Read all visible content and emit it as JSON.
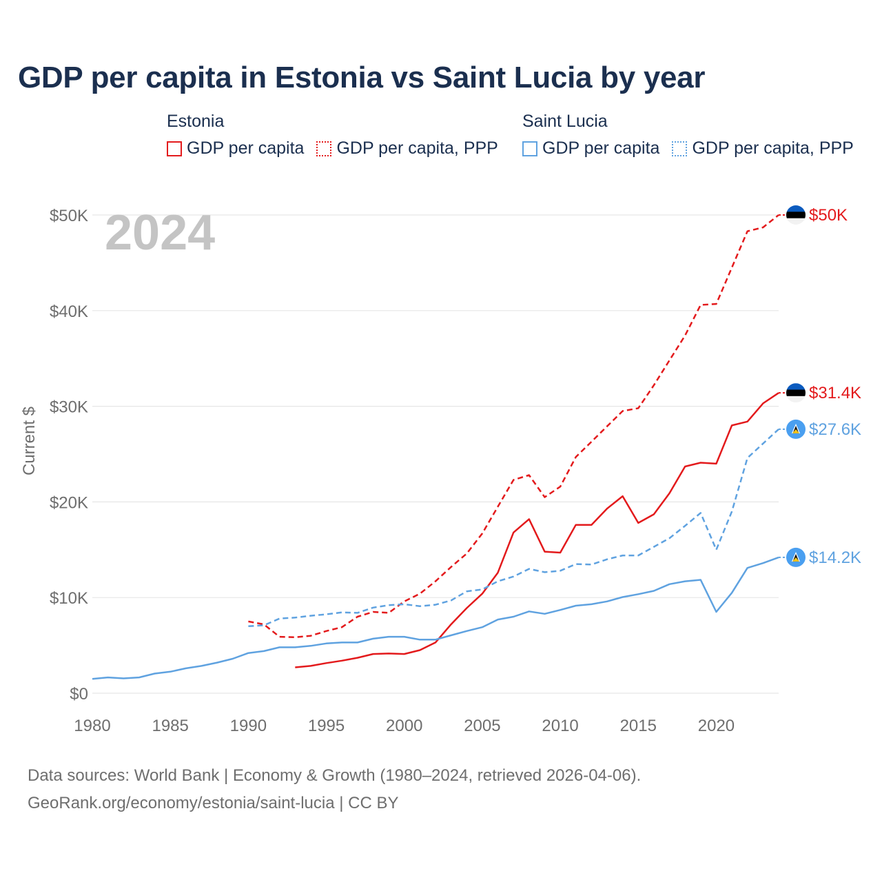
{
  "title": "GDP per capita in Estonia vs Saint Lucia by year",
  "legend": {
    "estonia": {
      "group": "Estonia",
      "items": [
        "GDP per capita",
        "GDP per capita, PPP"
      ]
    },
    "saint_lucia": {
      "group": "Saint Lucia",
      "items": [
        "GDP per capita",
        "GDP per capita, PPP"
      ]
    }
  },
  "footer": {
    "line1": "Data sources: World Bank | Economy & Growth (1980–2024, retrieved 2026-04-06).",
    "line2": "GeoRank.org/economy/estonia/saint-lucia | CC BY"
  },
  "colors": {
    "estonia": "#e31a1c",
    "saint_lucia": "#5fa2e0",
    "year_watermark": "#c4c4c4",
    "axis_text": "#6e6e6e",
    "title": "#1b2f4f"
  },
  "chart_data": {
    "type": "line",
    "title": "GDP per capita in Estonia vs Saint Lucia by year",
    "year_label": "2024",
    "ylabel": "Current $",
    "xlabel": "",
    "xlim": [
      1980,
      2024
    ],
    "ylim": [
      0,
      50000
    ],
    "x_ticks": [
      1980,
      1985,
      1990,
      1995,
      2000,
      2005,
      2010,
      2015,
      2020
    ],
    "y_ticks": [
      {
        "value": 0,
        "label": "$0"
      },
      {
        "value": 10000,
        "label": "$10K"
      },
      {
        "value": 20000,
        "label": "$20K"
      },
      {
        "value": 30000,
        "label": "$30K"
      },
      {
        "value": 40000,
        "label": "$40K"
      },
      {
        "value": 50000,
        "label": "$50K"
      }
    ],
    "grid": true,
    "series": [
      {
        "name": "Estonia GDP per capita",
        "country": "Estonia",
        "style": "solid",
        "color": "#e31a1c",
        "end_label": "$31.4K",
        "flag": "estonia",
        "x": [
          1993,
          1994,
          1995,
          1996,
          1997,
          1998,
          1999,
          2000,
          2001,
          2002,
          2003,
          2004,
          2005,
          2006,
          2007,
          2008,
          2009,
          2010,
          2011,
          2012,
          2013,
          2014,
          2015,
          2016,
          2017,
          2018,
          2019,
          2020,
          2021,
          2022,
          2023,
          2024
        ],
        "values": [
          2700,
          2850,
          3150,
          3400,
          3700,
          4100,
          4150,
          4100,
          4500,
          5300,
          7200,
          8900,
          10400,
          12600,
          16800,
          18200,
          14800,
          14700,
          17600,
          17600,
          19300,
          20600,
          17800,
          18700,
          20900,
          23700,
          24100,
          24000,
          28000,
          28400,
          30300,
          31400
        ]
      },
      {
        "name": "Estonia GDP per capita, PPP",
        "country": "Estonia",
        "style": "dashed",
        "color": "#e31a1c",
        "end_label": "$50K",
        "flag": "estonia",
        "x": [
          1990,
          1991,
          1992,
          1993,
          1994,
          1995,
          1996,
          1997,
          1998,
          1999,
          2000,
          2001,
          2002,
          2003,
          2004,
          2005,
          2006,
          2007,
          2008,
          2009,
          2010,
          2011,
          2012,
          2013,
          2014,
          2015,
          2016,
          2017,
          2018,
          2019,
          2020,
          2021,
          2022,
          2023,
          2024
        ],
        "values": [
          7500,
          7200,
          5900,
          5850,
          6000,
          6500,
          6900,
          8000,
          8500,
          8400,
          9600,
          10400,
          11700,
          13200,
          14600,
          16700,
          19500,
          22300,
          22800,
          20500,
          21600,
          24700,
          26300,
          27900,
          29500,
          29800,
          32200,
          34800,
          37400,
          40600,
          40700,
          44500,
          48300,
          48700,
          50000
        ]
      },
      {
        "name": "Saint Lucia GDP per capita",
        "country": "Saint Lucia",
        "style": "solid",
        "color": "#5fa2e0",
        "end_label": "$14.2K",
        "flag": "saint-lucia",
        "x": [
          1980,
          1981,
          1982,
          1983,
          1984,
          1985,
          1986,
          1987,
          1988,
          1989,
          1990,
          1991,
          1992,
          1993,
          1994,
          1995,
          1996,
          1997,
          1998,
          1999,
          2000,
          2001,
          2002,
          2003,
          2004,
          2005,
          2006,
          2007,
          2008,
          2009,
          2010,
          2011,
          2012,
          2013,
          2014,
          2015,
          2016,
          2017,
          2018,
          2019,
          2020,
          2021,
          2022,
          2023,
          2024
        ],
        "values": [
          1500,
          1650,
          1550,
          1650,
          2050,
          2250,
          2600,
          2850,
          3200,
          3600,
          4200,
          4400,
          4800,
          4800,
          4950,
          5200,
          5300,
          5300,
          5700,
          5900,
          5900,
          5600,
          5600,
          6050,
          6500,
          6900,
          7700,
          8000,
          8550,
          8300,
          8700,
          9150,
          9300,
          9600,
          10050,
          10350,
          10700,
          11400,
          11700,
          11850,
          8500,
          10500,
          13100,
          13600,
          14200
        ]
      },
      {
        "name": "Saint Lucia GDP per capita, PPP",
        "country": "Saint Lucia",
        "style": "dashed",
        "color": "#5fa2e0",
        "end_label": "$27.6K",
        "flag": "saint-lucia",
        "x": [
          1990,
          1991,
          1992,
          1993,
          1994,
          1995,
          1996,
          1997,
          1998,
          1999,
          2000,
          2001,
          2002,
          2003,
          2004,
          2005,
          2006,
          2007,
          2008,
          2009,
          2010,
          2011,
          2012,
          2013,
          2014,
          2015,
          2016,
          2017,
          2018,
          2019,
          2020,
          2021,
          2022,
          2023,
          2024
        ],
        "values": [
          7000,
          7100,
          7800,
          7900,
          8100,
          8250,
          8450,
          8400,
          8950,
          9200,
          9300,
          9100,
          9250,
          9700,
          10650,
          10850,
          11700,
          12200,
          13000,
          12650,
          12800,
          13500,
          13450,
          14000,
          14400,
          14400,
          15300,
          16200,
          17500,
          18850,
          15000,
          19000,
          24600,
          26100,
          27600
        ]
      }
    ]
  }
}
